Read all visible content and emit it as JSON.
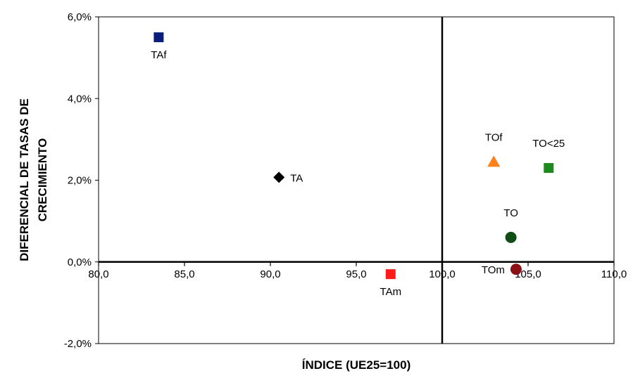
{
  "chart_data": {
    "type": "scatter",
    "xlabel": "ÍNDICE (UE25=100)",
    "ylabel": [
      "DIFERENCIAL DE TASAS DE",
      "CRECIMIENTO"
    ],
    "xlim": [
      80,
      110
    ],
    "ylim": [
      -2,
      6
    ],
    "x_ticks": [
      80,
      85,
      90,
      95,
      100,
      105,
      110
    ],
    "x_tick_labels": [
      "80,0",
      "85,0",
      "90,0",
      "95,0",
      "100,0",
      "105,0",
      "110,0"
    ],
    "y_ticks": [
      -2,
      0,
      2,
      4,
      6
    ],
    "y_tick_labels": [
      "-2,0%",
      "0,0%",
      "2,0%",
      "4,0%",
      "6,0%"
    ],
    "crosshair": {
      "x": 100,
      "y": 0
    },
    "grid": false,
    "points": [
      {
        "label": "TAf",
        "x": 83.5,
        "y": 5.5,
        "shape": "square",
        "color": "#0a1f7a",
        "label_pos": "below"
      },
      {
        "label": "TA",
        "x": 90.5,
        "y": 2.07,
        "shape": "diamond",
        "color": "#000000",
        "label_pos": "right"
      },
      {
        "label": "TAm",
        "x": 97.0,
        "y": -0.3,
        "shape": "square",
        "color": "#ff1a1a",
        "label_pos": "below"
      },
      {
        "label": "TOf",
        "x": 103.0,
        "y": 2.45,
        "shape": "triangle",
        "color": "#ff7f1a",
        "label_pos": "above"
      },
      {
        "label": "TO<25",
        "x": 106.2,
        "y": 2.3,
        "shape": "square",
        "color": "#1e8a1e",
        "label_pos": "above"
      },
      {
        "label": "TO",
        "x": 104.0,
        "y": 0.6,
        "shape": "circle",
        "color": "#0f4d14",
        "label_pos": "above"
      },
      {
        "label": "TOm",
        "x": 104.3,
        "y": -0.18,
        "shape": "circle",
        "color": "#8b0f14",
        "label_pos": "left"
      }
    ]
  }
}
